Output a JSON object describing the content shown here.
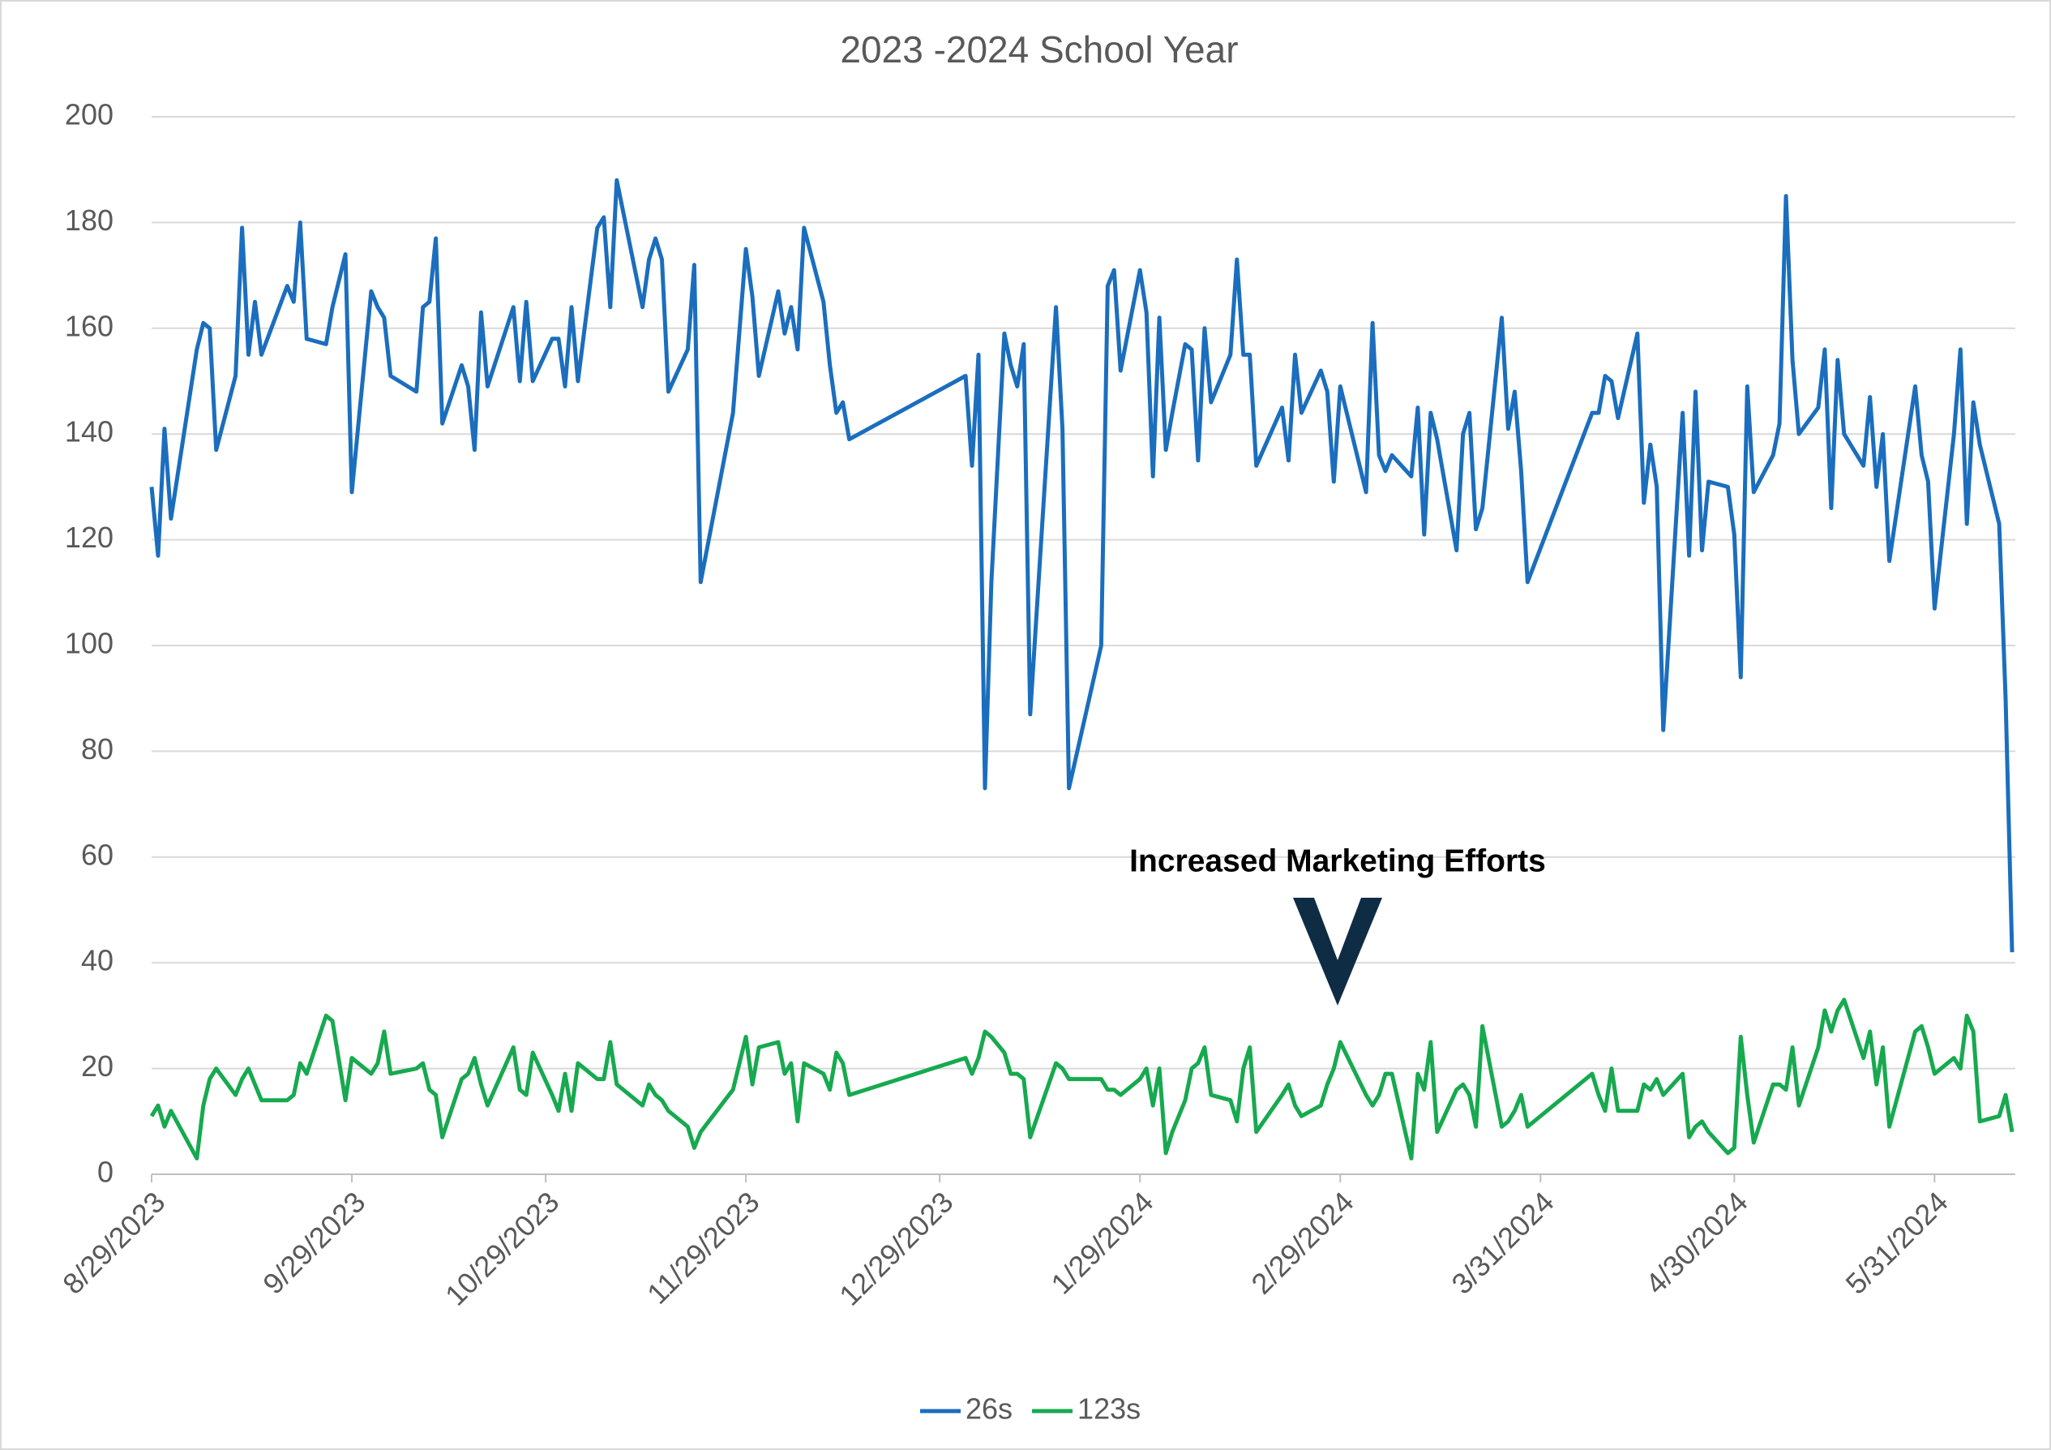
{
  "chart_data": {
    "type": "line",
    "title": "2023 -2024 School Year",
    "annotation": "Increased Marketing Efforts",
    "x": [
      "8/29/2023",
      "8/30/2023",
      "8/31/2023",
      "9/1/2023",
      "9/5/2023",
      "9/6/2023",
      "9/7/2023",
      "9/8/2023",
      "9/11/2023",
      "9/12/2023",
      "9/13/2023",
      "9/14/2023",
      "9/15/2023",
      "9/19/2023",
      "9/20/2023",
      "9/21/2023",
      "9/22/2023",
      "9/25/2023",
      "9/26/2023",
      "9/28/2023",
      "9/29/2023",
      "10/2/2023",
      "10/3/2023",
      "10/4/2023",
      "10/5/2023",
      "10/9/2023",
      "10/10/2023",
      "10/11/2023",
      "10/12/2023",
      "10/13/2023",
      "10/16/2023",
      "10/17/2023",
      "10/18/2023",
      "10/19/2023",
      "10/20/2023",
      "10/24/2023",
      "10/25/2023",
      "10/26/2023",
      "10/27/2023",
      "10/30/2023",
      "10/31/2023",
      "11/1/2023",
      "11/2/2023",
      "11/3/2023",
      "11/6/2023",
      "11/7/2023",
      "11/8/2023",
      "11/9/2023",
      "11/13/2023",
      "11/14/2023",
      "11/15/2023",
      "11/16/2023",
      "11/17/2023",
      "11/20/2023",
      "11/21/2023",
      "11/22/2023",
      "11/27/2023",
      "11/29/2023",
      "11/30/2023",
      "12/1/2023",
      "12/4/2023",
      "12/5/2023",
      "12/6/2023",
      "12/7/2023",
      "12/8/2023",
      "12/11/2023",
      "12/12/2023",
      "12/13/2023",
      "12/14/2023",
      "12/15/2023",
      "1/2/2024",
      "1/3/2024",
      "1/4/2024",
      "1/5/2024",
      "1/6/2024",
      "1/8/2024",
      "1/9/2024",
      "1/10/2024",
      "1/11/2024",
      "1/12/2024",
      "1/16/2024",
      "1/17/2024",
      "1/18/2024",
      "1/23/2024",
      "1/24/2024",
      "1/25/2024",
      "1/26/2024",
      "1/29/2024",
      "1/30/2024",
      "1/31/2024",
      "2/1/2024",
      "2/2/2024",
      "2/3/2024",
      "2/5/2024",
      "2/6/2024",
      "2/7/2024",
      "2/8/2024",
      "2/9/2024",
      "2/12/2024",
      "2/13/2024",
      "2/14/2024",
      "2/15/2024",
      "2/16/2024",
      "2/20/2024",
      "2/21/2024",
      "2/22/2024",
      "2/23/2024",
      "2/26/2024",
      "2/27/2024",
      "2/28/2024",
      "2/29/2024",
      "3/4/2024",
      "3/5/2024",
      "3/6/2024",
      "3/7/2024",
      "3/8/2024",
      "3/11/2024",
      "3/12/2024",
      "3/13/2024",
      "3/14/2024",
      "3/15/2024",
      "3/18/2024",
      "3/19/2024",
      "3/20/2024",
      "3/21/2024",
      "3/22/2024",
      "3/25/2024",
      "3/26/2024",
      "3/27/2024",
      "3/28/2024",
      "3/29/2024",
      "4/8/2024",
      "4/9/2024",
      "4/10/2024",
      "4/11/2024",
      "4/12/2024",
      "4/15/2024",
      "4/16/2024",
      "4/17/2024",
      "4/18/2024",
      "4/19/2024",
      "4/22/2024",
      "4/23/2024",
      "4/24/2024",
      "4/25/2024",
      "4/26/2024",
      "4/29/2024",
      "4/30/2024",
      "5/1/2024",
      "5/2/2024",
      "5/3/2024",
      "5/6/2024",
      "5/7/2024",
      "5/8/2024",
      "5/9/2024",
      "5/10/2024",
      "5/13/2024",
      "5/14/2024",
      "5/15/2024",
      "5/16/2024",
      "5/17/2024",
      "5/20/2024",
      "5/21/2024",
      "5/22/2024",
      "5/23/2024",
      "5/24/2024",
      "5/28/2024",
      "5/29/2024",
      "5/30/2024",
      "5/31/2024",
      "6/3/2024",
      "6/4/2024",
      "6/5/2024",
      "6/6/2024",
      "6/7/2024",
      "6/10/2024",
      "6/11/2024",
      "6/12/2024"
    ],
    "series": [
      {
        "name": "26s",
        "color": "#1b6ebd",
        "values": [
          130,
          117,
          141,
          124,
          156,
          161,
          160,
          137,
          151,
          179,
          155,
          165,
          155,
          168,
          165,
          180,
          158,
          157,
          164,
          174,
          129,
          167,
          164,
          162,
          151,
          148,
          164,
          165,
          177,
          142,
          153,
          149,
          137,
          163,
          149,
          164,
          150,
          165,
          150,
          158,
          158,
          149,
          164,
          150,
          179,
          181,
          164,
          188,
          164,
          173,
          177,
          173,
          148,
          156,
          172,
          112,
          144,
          175,
          166,
          151,
          167,
          159,
          164,
          156,
          179,
          165,
          153,
          144,
          146,
          139,
          151,
          134,
          155,
          73,
          112,
          159,
          153,
          149,
          157,
          87,
          164,
          141,
          73,
          100,
          168,
          171,
          152,
          171,
          163,
          132,
          162,
          137,
          144,
          157,
          156,
          135,
          160,
          146,
          155,
          173,
          155,
          155,
          134,
          145,
          135,
          155,
          144,
          152,
          148,
          131,
          149,
          129,
          161,
          136,
          133,
          136,
          132,
          145,
          121,
          144,
          139,
          118,
          140,
          144,
          122,
          126,
          162,
          141,
          148,
          133,
          112,
          144,
          144,
          151,
          150,
          143,
          159,
          127,
          138,
          130,
          84,
          144,
          117,
          148,
          118,
          131,
          130,
          121,
          94,
          149,
          129,
          136,
          142,
          185,
          154,
          140,
          145,
          156,
          126,
          154,
          140,
          134,
          147,
          130,
          140,
          116,
          149,
          136,
          131,
          107,
          140,
          156,
          123,
          146,
          138,
          123,
          90,
          42
        ]
      },
      {
        "name": "123s",
        "color": "#17a94f",
        "values": [
          11,
          13,
          9,
          12,
          3,
          13,
          18,
          20,
          15,
          18,
          20,
          17,
          14,
          14,
          15,
          21,
          19,
          30,
          29,
          14,
          22,
          19,
          21,
          27,
          19,
          20,
          21,
          16,
          15,
          7,
          18,
          19,
          22,
          17,
          13,
          24,
          16,
          15,
          23,
          15,
          12,
          19,
          12,
          21,
          18,
          18,
          25,
          17,
          13,
          17,
          15,
          14,
          12,
          9,
          5,
          8,
          16,
          26,
          17,
          24,
          25,
          19,
          21,
          10,
          21,
          19,
          16,
          23,
          21,
          15,
          22,
          19,
          22,
          27,
          26,
          23,
          19,
          19,
          18,
          7,
          21,
          20,
          18,
          18,
          16,
          16,
          15,
          18,
          20,
          13,
          20,
          4,
          8,
          14,
          20,
          21,
          24,
          15,
          14,
          10,
          20,
          24,
          8,
          15,
          17,
          13,
          11,
          13,
          17,
          20,
          25,
          15,
          13,
          15,
          19,
          19,
          3,
          19,
          16,
          25,
          8,
          16,
          17,
          15,
          9,
          28,
          9,
          10,
          12,
          15,
          9,
          19,
          15,
          12,
          20,
          12,
          12,
          17,
          16,
          18,
          15,
          19,
          7,
          9,
          10,
          8,
          4,
          5,
          26,
          15,
          6,
          17,
          17,
          16,
          24,
          13,
          24,
          31,
          27,
          31,
          33,
          22,
          27,
          17,
          24,
          9,
          27,
          28,
          24,
          19,
          22,
          20,
          30,
          27,
          10,
          11,
          15,
          8
        ]
      }
    ],
    "xlim": [
      "8/29/2023",
      "6/12/2024"
    ],
    "xticks": [
      "8/29/2023",
      "9/29/2023",
      "10/29/2023",
      "11/29/2023",
      "12/29/2023",
      "1/29/2024",
      "2/29/2024",
      "3/31/2024",
      "4/30/2024",
      "5/31/2024"
    ],
    "ylim": [
      0,
      200
    ],
    "yticks": [
      0,
      20,
      40,
      60,
      80,
      100,
      120,
      140,
      160,
      180,
      200
    ],
    "grid": true,
    "legend": "bottom"
  }
}
